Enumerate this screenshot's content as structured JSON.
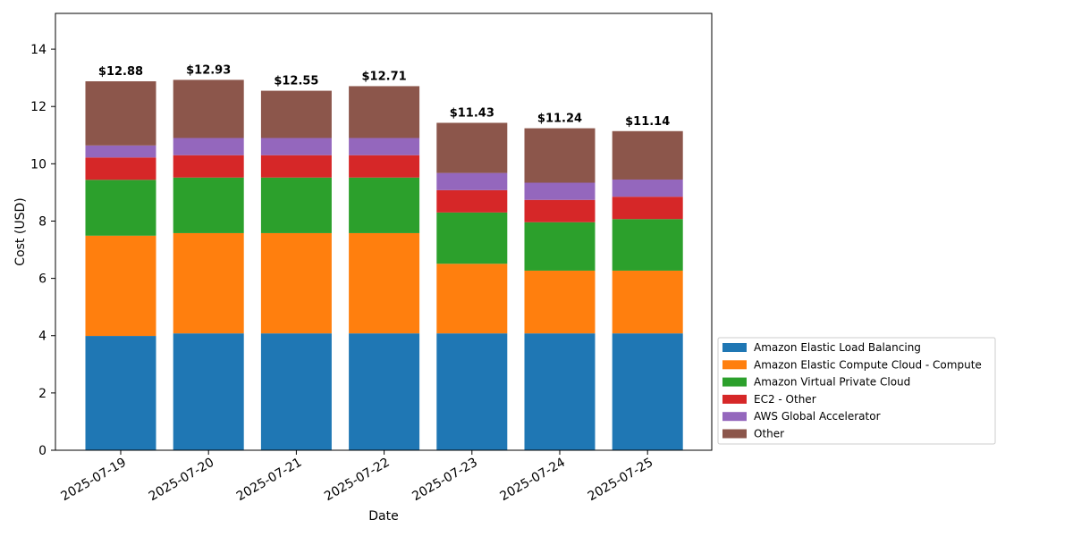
{
  "chart_data": {
    "type": "bar",
    "stacked": true,
    "title": "",
    "xlabel": "Date",
    "ylabel": "Cost (USD)",
    "ylim": [
      0,
      15.25
    ],
    "yticks": [
      0,
      2,
      4,
      6,
      8,
      10,
      12,
      14
    ],
    "grid": false,
    "legend_position": "lower-right-outside",
    "categories": [
      "2025-07-19",
      "2025-07-20",
      "2025-07-21",
      "2025-07-22",
      "2025-07-23",
      "2025-07-24",
      "2025-07-25"
    ],
    "totals_labels": [
      "$12.88",
      "$12.93",
      "$12.55",
      "$12.71",
      "$11.43",
      "$11.24",
      "$11.14"
    ],
    "series": [
      {
        "name": "Amazon Elastic Load Balancing",
        "color": "#1f77b4",
        "values": [
          3.99,
          4.08,
          4.08,
          4.08,
          4.08,
          4.08,
          4.08
        ]
      },
      {
        "name": "Amazon Elastic Compute Cloud - Compute",
        "color": "#ff7f0e",
        "values": [
          3.5,
          3.5,
          3.5,
          3.5,
          2.43,
          2.19,
          2.19
        ]
      },
      {
        "name": "Amazon Virtual Private Cloud",
        "color": "#2ca02c",
        "values": [
          1.95,
          1.94,
          1.94,
          1.94,
          1.79,
          1.69,
          1.8
        ]
      },
      {
        "name": "EC2 - Other",
        "color": "#d62728",
        "values": [
          0.78,
          0.78,
          0.78,
          0.78,
          0.78,
          0.78,
          0.78
        ]
      },
      {
        "name": "AWS Global Accelerator",
        "color": "#9467bd",
        "values": [
          0.42,
          0.6,
          0.6,
          0.6,
          0.6,
          0.6,
          0.6
        ]
      },
      {
        "name": "Other",
        "color": "#8c564b",
        "values": [
          2.24,
          2.03,
          1.65,
          1.81,
          1.75,
          1.9,
          1.69
        ]
      }
    ]
  }
}
